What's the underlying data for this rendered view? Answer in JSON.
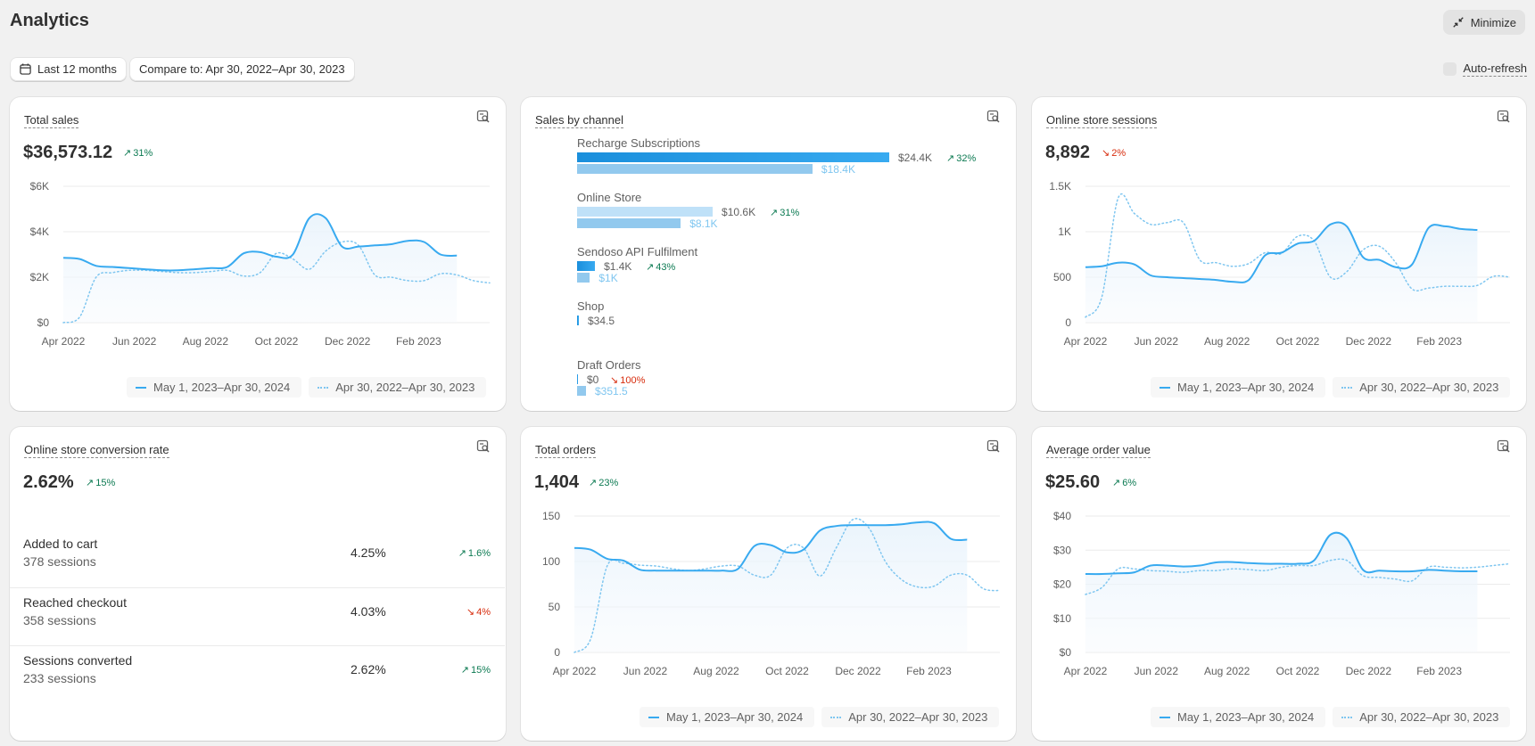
{
  "page": {
    "title": "Analytics",
    "minimize_label": "Minimize"
  },
  "filters": {
    "date_range": "Last 12 months",
    "compare": "Compare to: Apr 30, 2022–Apr 30, 2023",
    "auto_refresh": "Auto-refresh"
  },
  "legend": {
    "current": "May 1, 2023–Apr 30, 2024",
    "previous": "Apr 30, 2022–Apr 30, 2023"
  },
  "colors": {
    "accent": "#38aaf0",
    "previous": "#7fc6f0",
    "positive": "#0c7a52",
    "negative": "#d72c0d"
  },
  "cards": {
    "total_sales": {
      "title": "Total sales",
      "value": "$36,573.12",
      "delta": "31%"
    },
    "sales_by_channel": {
      "title": "Sales by channel"
    },
    "sessions": {
      "title": "Online store sessions",
      "value": "8,892",
      "delta": "2%"
    },
    "conversion": {
      "title": "Online store conversion rate",
      "value": "2.62%",
      "delta": "15%"
    },
    "orders": {
      "title": "Total orders",
      "value": "1,404",
      "delta": "23%"
    },
    "aov": {
      "title": "Average order value",
      "value": "$25.60",
      "delta": "6%"
    }
  },
  "channels": [
    {
      "name": "Recharge Subscriptions",
      "value": "$24.4K",
      "delta": "32%",
      "delta_dir": "up",
      "prev": "$18.4K",
      "cur_amount": 24.4,
      "prev_amount": 18.4
    },
    {
      "name": "Online Store",
      "value": "$10.6K",
      "delta": "31%",
      "delta_dir": "up",
      "prev": "$8.1K",
      "cur_amount": 10.6,
      "prev_amount": 8.1
    },
    {
      "name": "Sendoso API Fulfilment",
      "value": "$1.4K",
      "delta": "43%",
      "delta_dir": "up",
      "prev": "$1K",
      "cur_amount": 1.4,
      "prev_amount": 1.0
    },
    {
      "name": "Shop",
      "value": "$34.5",
      "delta": "",
      "delta_dir": "",
      "prev": "",
      "cur_amount": 0.0345,
      "prev_amount": 0
    },
    {
      "name": "Draft Orders",
      "value": "$0",
      "delta": "100%",
      "delta_dir": "down",
      "prev": "$351.5",
      "cur_amount": 0,
      "prev_amount": 0.35
    }
  ],
  "conversion_rows": [
    {
      "name": "Added to cart",
      "sessions": "378 sessions",
      "pct": "4.25%",
      "delta": "1.6%",
      "delta_dir": "up"
    },
    {
      "name": "Reached checkout",
      "sessions": "358 sessions",
      "pct": "4.03%",
      "delta": "4%",
      "delta_dir": "down"
    },
    {
      "name": "Sessions converted",
      "sessions": "233 sessions",
      "pct": "2.62%",
      "delta": "15%",
      "delta_dir": "up"
    }
  ],
  "chart_data": [
    {
      "id": "total_sales",
      "type": "line",
      "title": "Total sales",
      "x_ticks": [
        "Apr 2022",
        "Jun 2022",
        "Aug 2022",
        "Oct 2022",
        "Dec 2022",
        "Feb 2023"
      ],
      "y_ticks": [
        "$0",
        "$2K",
        "$4K",
        "$6K"
      ],
      "ylim": [
        0,
        6000
      ],
      "series": [
        {
          "name": "May 1, 2023–Apr 30, 2024",
          "style": "solid",
          "values": [
            2850,
            2800,
            2500,
            2450,
            2400,
            2350,
            2300,
            2300,
            2350,
            2400,
            2450,
            3050,
            3100,
            2900,
            3000,
            4600,
            4600,
            3350,
            3350,
            3400,
            3450,
            3600,
            3550,
            3000,
            2950
          ]
        },
        {
          "name": "Apr 30, 2022–Apr 30, 2023",
          "style": "dotted",
          "values": [
            0,
            250,
            2000,
            2200,
            2300,
            2300,
            2250,
            2200,
            2200,
            2250,
            2300,
            2050,
            2200,
            3050,
            2800,
            2350,
            3150,
            3550,
            3400,
            2100,
            2000,
            1850,
            1850,
            2150,
            2100,
            1850,
            1750
          ]
        }
      ]
    },
    {
      "id": "sessions",
      "type": "line",
      "title": "Online store sessions",
      "x_ticks": [
        "Apr 2022",
        "Jun 2022",
        "Aug 2022",
        "Oct 2022",
        "Dec 2022",
        "Feb 2023"
      ],
      "y_ticks": [
        "0",
        "500",
        "1K",
        "1.5K"
      ],
      "ylim": [
        0,
        1500
      ],
      "series": [
        {
          "name": "May 1, 2023–Apr 30, 2024",
          "style": "solid",
          "values": [
            610,
            620,
            660,
            640,
            520,
            500,
            490,
            480,
            470,
            450,
            470,
            740,
            770,
            870,
            900,
            1080,
            1060,
            720,
            690,
            610,
            640,
            1040,
            1060,
            1030,
            1020
          ]
        },
        {
          "name": "Apr 30, 2022–Apr 30, 2023",
          "style": "dotted",
          "values": [
            60,
            280,
            1370,
            1200,
            1080,
            1100,
            1100,
            690,
            660,
            620,
            650,
            770,
            760,
            950,
            900,
            500,
            560,
            800,
            840,
            660,
            370,
            380,
            400,
            400,
            410,
            510,
            500
          ]
        }
      ]
    },
    {
      "id": "orders",
      "type": "line",
      "title": "Total orders",
      "x_ticks": [
        "Apr 2022",
        "Jun 2022",
        "Aug 2022",
        "Oct 2022",
        "Dec 2022",
        "Feb 2023"
      ],
      "y_ticks": [
        "0",
        "50",
        "100",
        "150"
      ],
      "ylim": [
        0,
        150
      ],
      "series": [
        {
          "name": "May 1, 2023–Apr 30, 2024",
          "style": "solid",
          "values": [
            115,
            113,
            103,
            101,
            91,
            90,
            90,
            90,
            90,
            90,
            92,
            117,
            118,
            110,
            113,
            134,
            139,
            140,
            140,
            140,
            141,
            143,
            142,
            125,
            124
          ]
        },
        {
          "name": "Apr 30, 2022–Apr 30, 2023",
          "style": "dotted",
          "values": [
            0,
            15,
            95,
            98,
            96,
            95,
            92,
            90,
            92,
            95,
            95,
            85,
            85,
            115,
            115,
            84,
            115,
            146,
            137,
            100,
            80,
            72,
            73,
            85,
            85,
            70,
            68
          ]
        }
      ]
    },
    {
      "id": "aov",
      "type": "line",
      "title": "Average order value",
      "x_ticks": [
        "Apr 2022",
        "Jun 2022",
        "Aug 2022",
        "Oct 2022",
        "Dec 2022",
        "Feb 2023"
      ],
      "y_ticks": [
        "$0",
        "$10",
        "$20",
        "$30",
        "$40"
      ],
      "ylim": [
        0,
        40
      ],
      "series": [
        {
          "name": "May 1, 2023–Apr 30, 2024",
          "style": "solid",
          "values": [
            23,
            23,
            23.2,
            23.5,
            25.5,
            25.5,
            25.2,
            25.5,
            26.4,
            26.5,
            26.2,
            26.0,
            26.0,
            26.0,
            27.0,
            34.5,
            33.5,
            24.2,
            24.0,
            23.8,
            23.8,
            24.2,
            24.0,
            23.8,
            23.8
          ]
        },
        {
          "name": "Apr 30, 2022–Apr 30, 2023",
          "style": "dotted",
          "values": [
            17,
            19,
            24.5,
            24.5,
            24,
            23.8,
            23.5,
            24.0,
            24.0,
            24.5,
            24.3,
            24.0,
            25.0,
            25.5,
            25.5,
            27.0,
            27.0,
            22.5,
            22.0,
            21.5,
            21.0,
            25.0,
            25.0,
            24.8,
            25.0,
            25.5,
            26.0
          ]
        }
      ]
    }
  ]
}
